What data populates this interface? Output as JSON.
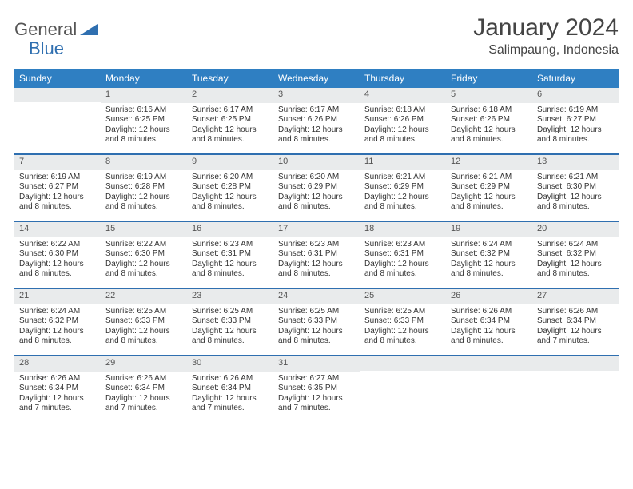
{
  "brand": {
    "part1": "General",
    "part2": "Blue"
  },
  "title": "January 2024",
  "location": "Salimpaung, Indonesia",
  "colors": {
    "header_bg": "#2f7fc2",
    "header_text": "#ffffff",
    "week_divider": "#2f6fb0",
    "daynum_bg": "#e9ebec",
    "text": "#333333",
    "brand_accent": "#2f6fb0"
  },
  "dayNames": [
    "Sunday",
    "Monday",
    "Tuesday",
    "Wednesday",
    "Thursday",
    "Friday",
    "Saturday"
  ],
  "weeks": [
    [
      null,
      {
        "n": "1",
        "sr": "Sunrise: 6:16 AM",
        "ss": "Sunset: 6:25 PM",
        "dl1": "Daylight: 12 hours",
        "dl2": "and 8 minutes."
      },
      {
        "n": "2",
        "sr": "Sunrise: 6:17 AM",
        "ss": "Sunset: 6:25 PM",
        "dl1": "Daylight: 12 hours",
        "dl2": "and 8 minutes."
      },
      {
        "n": "3",
        "sr": "Sunrise: 6:17 AM",
        "ss": "Sunset: 6:26 PM",
        "dl1": "Daylight: 12 hours",
        "dl2": "and 8 minutes."
      },
      {
        "n": "4",
        "sr": "Sunrise: 6:18 AM",
        "ss": "Sunset: 6:26 PM",
        "dl1": "Daylight: 12 hours",
        "dl2": "and 8 minutes."
      },
      {
        "n": "5",
        "sr": "Sunrise: 6:18 AM",
        "ss": "Sunset: 6:26 PM",
        "dl1": "Daylight: 12 hours",
        "dl2": "and 8 minutes."
      },
      {
        "n": "6",
        "sr": "Sunrise: 6:19 AM",
        "ss": "Sunset: 6:27 PM",
        "dl1": "Daylight: 12 hours",
        "dl2": "and 8 minutes."
      }
    ],
    [
      {
        "n": "7",
        "sr": "Sunrise: 6:19 AM",
        "ss": "Sunset: 6:27 PM",
        "dl1": "Daylight: 12 hours",
        "dl2": "and 8 minutes."
      },
      {
        "n": "8",
        "sr": "Sunrise: 6:19 AM",
        "ss": "Sunset: 6:28 PM",
        "dl1": "Daylight: 12 hours",
        "dl2": "and 8 minutes."
      },
      {
        "n": "9",
        "sr": "Sunrise: 6:20 AM",
        "ss": "Sunset: 6:28 PM",
        "dl1": "Daylight: 12 hours",
        "dl2": "and 8 minutes."
      },
      {
        "n": "10",
        "sr": "Sunrise: 6:20 AM",
        "ss": "Sunset: 6:29 PM",
        "dl1": "Daylight: 12 hours",
        "dl2": "and 8 minutes."
      },
      {
        "n": "11",
        "sr": "Sunrise: 6:21 AM",
        "ss": "Sunset: 6:29 PM",
        "dl1": "Daylight: 12 hours",
        "dl2": "and 8 minutes."
      },
      {
        "n": "12",
        "sr": "Sunrise: 6:21 AM",
        "ss": "Sunset: 6:29 PM",
        "dl1": "Daylight: 12 hours",
        "dl2": "and 8 minutes."
      },
      {
        "n": "13",
        "sr": "Sunrise: 6:21 AM",
        "ss": "Sunset: 6:30 PM",
        "dl1": "Daylight: 12 hours",
        "dl2": "and 8 minutes."
      }
    ],
    [
      {
        "n": "14",
        "sr": "Sunrise: 6:22 AM",
        "ss": "Sunset: 6:30 PM",
        "dl1": "Daylight: 12 hours",
        "dl2": "and 8 minutes."
      },
      {
        "n": "15",
        "sr": "Sunrise: 6:22 AM",
        "ss": "Sunset: 6:30 PM",
        "dl1": "Daylight: 12 hours",
        "dl2": "and 8 minutes."
      },
      {
        "n": "16",
        "sr": "Sunrise: 6:23 AM",
        "ss": "Sunset: 6:31 PM",
        "dl1": "Daylight: 12 hours",
        "dl2": "and 8 minutes."
      },
      {
        "n": "17",
        "sr": "Sunrise: 6:23 AM",
        "ss": "Sunset: 6:31 PM",
        "dl1": "Daylight: 12 hours",
        "dl2": "and 8 minutes."
      },
      {
        "n": "18",
        "sr": "Sunrise: 6:23 AM",
        "ss": "Sunset: 6:31 PM",
        "dl1": "Daylight: 12 hours",
        "dl2": "and 8 minutes."
      },
      {
        "n": "19",
        "sr": "Sunrise: 6:24 AM",
        "ss": "Sunset: 6:32 PM",
        "dl1": "Daylight: 12 hours",
        "dl2": "and 8 minutes."
      },
      {
        "n": "20",
        "sr": "Sunrise: 6:24 AM",
        "ss": "Sunset: 6:32 PM",
        "dl1": "Daylight: 12 hours",
        "dl2": "and 8 minutes."
      }
    ],
    [
      {
        "n": "21",
        "sr": "Sunrise: 6:24 AM",
        "ss": "Sunset: 6:32 PM",
        "dl1": "Daylight: 12 hours",
        "dl2": "and 8 minutes."
      },
      {
        "n": "22",
        "sr": "Sunrise: 6:25 AM",
        "ss": "Sunset: 6:33 PM",
        "dl1": "Daylight: 12 hours",
        "dl2": "and 8 minutes."
      },
      {
        "n": "23",
        "sr": "Sunrise: 6:25 AM",
        "ss": "Sunset: 6:33 PM",
        "dl1": "Daylight: 12 hours",
        "dl2": "and 8 minutes."
      },
      {
        "n": "24",
        "sr": "Sunrise: 6:25 AM",
        "ss": "Sunset: 6:33 PM",
        "dl1": "Daylight: 12 hours",
        "dl2": "and 8 minutes."
      },
      {
        "n": "25",
        "sr": "Sunrise: 6:25 AM",
        "ss": "Sunset: 6:33 PM",
        "dl1": "Daylight: 12 hours",
        "dl2": "and 8 minutes."
      },
      {
        "n": "26",
        "sr": "Sunrise: 6:26 AM",
        "ss": "Sunset: 6:34 PM",
        "dl1": "Daylight: 12 hours",
        "dl2": "and 8 minutes."
      },
      {
        "n": "27",
        "sr": "Sunrise: 6:26 AM",
        "ss": "Sunset: 6:34 PM",
        "dl1": "Daylight: 12 hours",
        "dl2": "and 7 minutes."
      }
    ],
    [
      {
        "n": "28",
        "sr": "Sunrise: 6:26 AM",
        "ss": "Sunset: 6:34 PM",
        "dl1": "Daylight: 12 hours",
        "dl2": "and 7 minutes."
      },
      {
        "n": "29",
        "sr": "Sunrise: 6:26 AM",
        "ss": "Sunset: 6:34 PM",
        "dl1": "Daylight: 12 hours",
        "dl2": "and 7 minutes."
      },
      {
        "n": "30",
        "sr": "Sunrise: 6:26 AM",
        "ss": "Sunset: 6:34 PM",
        "dl1": "Daylight: 12 hours",
        "dl2": "and 7 minutes."
      },
      {
        "n": "31",
        "sr": "Sunrise: 6:27 AM",
        "ss": "Sunset: 6:35 PM",
        "dl1": "Daylight: 12 hours",
        "dl2": "and 7 minutes."
      },
      null,
      null,
      null
    ]
  ]
}
